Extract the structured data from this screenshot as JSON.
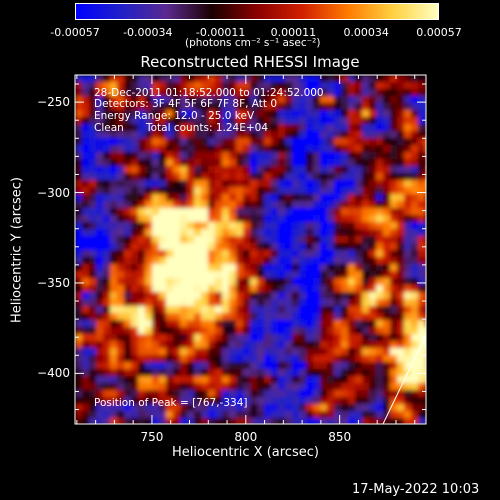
{
  "colorbar": {
    "ticks": [
      "-0.00057",
      "-0.00034",
      "-0.00011",
      "0.00011",
      "0.00034",
      "0.00057"
    ],
    "unit_label": "(photons cm⁻² s⁻¹ asec⁻²)",
    "stops": [
      "#0000ff",
      "#2020c8",
      "#5a2a90",
      "#1a0000",
      "#8b0000",
      "#d02000",
      "#ff7a00",
      "#ffd040",
      "#ffffc0"
    ]
  },
  "chart_data": {
    "type": "heatmap",
    "title": "Reconstructed RHESSI Image",
    "xlabel": "Heliocentric X (arcsec)",
    "ylabel": "Heliocentric Y (arcsec)",
    "xlim": [
      709,
      896
    ],
    "ylim": [
      -428,
      -235
    ],
    "xticks": [
      750,
      800,
      850
    ],
    "yticks": [
      -250,
      -300,
      -350,
      -400
    ],
    "annotations": [
      "28-Dec-2011 01:18:52.000 to 01:24:52.000",
      "Detectors: 3F 4F 5F 6F 7F 8F, Att 0",
      "Energy Range: 12.0 - 25.0 keV",
      "Clean",
      "Total counts: 1.24E+04"
    ],
    "peak_label": "Position of Peak = [767,-334]",
    "peak": [
      767,
      -334
    ]
  },
  "footer": {
    "date": "17-May-2022 10:03"
  }
}
